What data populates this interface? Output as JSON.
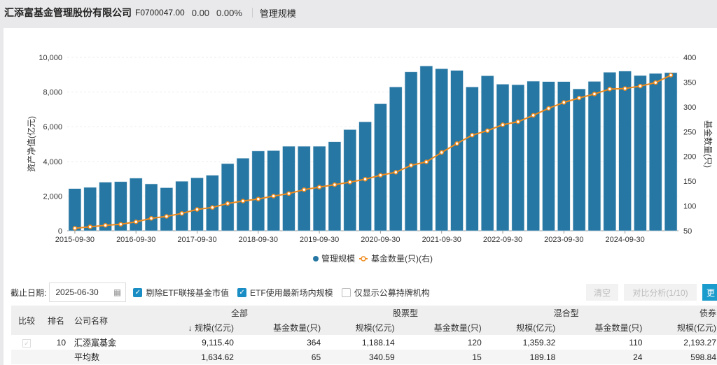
{
  "header": {
    "company": "汇添富基金管理股份有限公司",
    "code": "F0700047.00",
    "change": "0.00",
    "change_pct": "0.00%",
    "tab": "管理规模"
  },
  "chart_data": {
    "type": "bar+line",
    "title": "",
    "ylabel_left": "资产净值(亿元)",
    "ylabel_right": "基金数量(只)",
    "ylim_left": [
      0,
      10000
    ],
    "ylim_right": [
      50,
      400
    ],
    "yticks_left": [
      "0",
      "2,000",
      "4,000",
      "6,000",
      "8,000",
      "10,000"
    ],
    "yticks_right": [
      "50",
      "100",
      "150",
      "200",
      "250",
      "300",
      "350",
      "400"
    ],
    "xtick_labels": [
      "2015-09-30",
      "2016-09-30",
      "2017-09-30",
      "2018-09-30",
      "2019-09-30",
      "2020-09-30",
      "2021-09-30",
      "2022-09-30",
      "2023-09-30",
      "2024-09-30"
    ],
    "x_start": "2015-09-30",
    "x_end": "2025-06-30",
    "x_freq": "quarterly",
    "legend": "bottom",
    "series": [
      {
        "name": "管理规模",
        "type": "bar",
        "axis": "left",
        "color": "#2677a3",
        "values": [
          2430,
          2500,
          2800,
          2830,
          3030,
          2700,
          2480,
          2850,
          3050,
          3200,
          3870,
          4180,
          4600,
          4620,
          4870,
          4870,
          4870,
          5130,
          5830,
          6280,
          7320,
          8290,
          9160,
          9500,
          9340,
          9245,
          8290,
          8935,
          8450,
          8420,
          8625,
          8600,
          8600,
          8180,
          8610,
          9137,
          9205,
          8950,
          9070,
          9115.4
        ]
      },
      {
        "name": "基金数量(只)(右)",
        "type": "line",
        "axis": "right",
        "color": "#f08a1c",
        "values": [
          55,
          58,
          61,
          63,
          68,
          75,
          79,
          85,
          93,
          97,
          105,
          110,
          114,
          120,
          125,
          133,
          138,
          143,
          148,
          154,
          162,
          168,
          182,
          189,
          208,
          226,
          243,
          252,
          264,
          270,
          283,
          297,
          309,
          318,
          326,
          336,
          337,
          342,
          349,
          364
        ]
      }
    ]
  },
  "controls": {
    "date_label": "截止日期:",
    "date_value": "2025-06-30",
    "cb1": "剔除ETF联接基金市值",
    "cb2": "ETF使用最新场内规模",
    "cb3": "仅显示公募持牌机构",
    "clear": "清空",
    "compare": "对比分析(1/10)",
    "more": "更"
  },
  "table": {
    "groups": [
      "全部",
      "股票型",
      "混合型",
      "债券"
    ],
    "cols": {
      "compare": "比较",
      "rank": "排名",
      "name": "公司名称",
      "scale_sorted": "↓ 规模(亿元)",
      "scale": "规模(亿元)",
      "count": "基金数量(只)"
    },
    "rows": [
      {
        "rank": "10",
        "name": "汇添富基金",
        "v": [
          "9,115.40",
          "364",
          "1,188.14",
          "120",
          "1,359.32",
          "110",
          "2,193.27"
        ]
      },
      {
        "rank": "",
        "name": "平均数",
        "v": [
          "1,634.62",
          "65",
          "340.59",
          "15",
          "189.18",
          "24",
          "598.84"
        ]
      }
    ]
  }
}
